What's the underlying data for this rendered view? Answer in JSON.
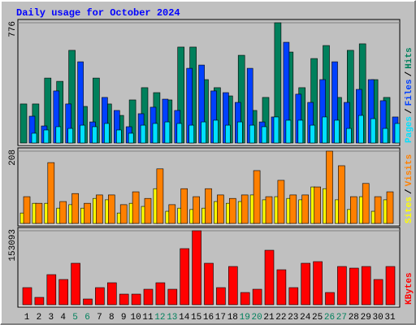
{
  "chart_data": [
    {
      "type": "bar",
      "title": "Daily usage for October 2024",
      "ylim": [
        0,
        776
      ],
      "yticks": [
        776
      ],
      "separator": "/",
      "series": [
        {
          "name": "Pages",
          "color": "#00e0ff",
          "values": [
            63,
            84,
            105,
            94,
            115,
            105,
            126,
            84,
            63,
            115,
            126,
            136,
            126,
            115,
            136,
            147,
            115,
            136,
            115,
            105,
            168,
            147,
            147,
            115,
            168,
            147,
            94,
            178,
            157,
            94,
            126
          ]
        },
        {
          "name": "Files",
          "color": "#0040ff",
          "values": [
            173,
            110,
            336,
            252,
            524,
            136,
            294,
            210,
            105,
            189,
            231,
            283,
            210,
            482,
            503,
            336,
            325,
            262,
            482,
            136,
            168,
            650,
            315,
            262,
            409,
            524,
            262,
            346,
            409,
            273,
            168
          ]
        },
        {
          "name": "Hits",
          "color": "#00805c",
          "values": [
            252,
            252,
            419,
            398,
            598,
            236,
            419,
            252,
            178,
            278,
            357,
            325,
            278,
            619,
            619,
            409,
            357,
            304,
            566,
            210,
            294,
            776,
            587,
            357,
            545,
            629,
            294,
            598,
            640,
            409,
            294
          ]
        }
      ]
    },
    {
      "type": "bar",
      "ylim": [
        0,
        208
      ],
      "yticks": [
        208
      ],
      "separator": "/",
      "series": [
        {
          "name": "Sites",
          "color": "#ffff00",
          "values": [
            30,
            58,
            58,
            44,
            54,
            44,
            72,
            68,
            30,
            58,
            49,
            100,
            35,
            44,
            40,
            44,
            63,
            58,
            63,
            82,
            68,
            77,
            72,
            68,
            105,
            100,
            68,
            40,
            77,
            35,
            68
          ]
        },
        {
          "name": "Visits",
          "color": "#ff8000",
          "values": [
            77,
            58,
            175,
            63,
            86,
            58,
            82,
            82,
            54,
            91,
            72,
            157,
            54,
            100,
            77,
            100,
            82,
            72,
            82,
            152,
            77,
            124,
            82,
            82,
            105,
            208,
            166,
            77,
            115,
            77,
            91
          ]
        }
      ]
    },
    {
      "type": "bar",
      "ylim": [
        0,
        153093
      ],
      "yticks": [
        153093
      ],
      "categories": [
        "1",
        "2",
        "3",
        "4",
        "5",
        "6",
        "7",
        "8",
        "9",
        "10",
        "11",
        "12",
        "13",
        "14",
        "15",
        "16",
        "17",
        "18",
        "19",
        "20",
        "21",
        "22",
        "23",
        "24",
        "25",
        "26",
        "27",
        "28",
        "29",
        "30",
        "31"
      ],
      "category_colors": [
        "#000000",
        "#000000",
        "#000000",
        "#000000",
        "#00805c",
        "#00805c",
        "#000000",
        "#000000",
        "#000000",
        "#000000",
        "#000000",
        "#00805c",
        "#00805c",
        "#000000",
        "#000000",
        "#000000",
        "#000000",
        "#000000",
        "#00805c",
        "#00805c",
        "#000000",
        "#000000",
        "#000000",
        "#000000",
        "#000000",
        "#00805c",
        "#00805c",
        "#000000",
        "#000000",
        "#000000",
        "#000000"
      ],
      "series": [
        {
          "name": "KBytes",
          "color": "#ff0000",
          "values": [
            35330,
            15140,
            62250,
            52160,
            85800,
            11780,
            35330,
            45420,
            21870,
            21870,
            31960,
            45420,
            31960,
            116080,
            153093,
            85800,
            35330,
            79070,
            25230,
            31960,
            112720,
            72340,
            35330,
            85800,
            89170,
            25230,
            79070,
            75700,
            79070,
            52160,
            79070
          ]
        }
      ]
    }
  ]
}
